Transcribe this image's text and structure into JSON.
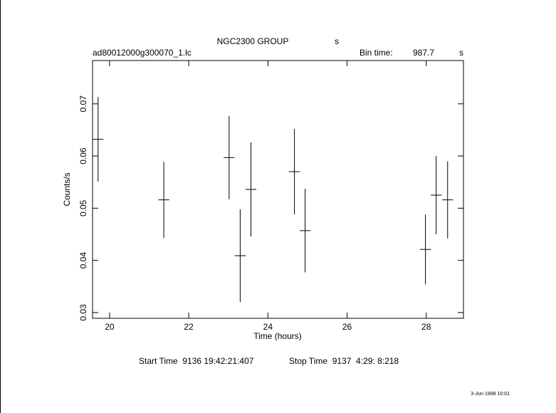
{
  "chart_data": {
    "type": "errorbar",
    "title": "NGC2300 GROUP",
    "title_unit": "s",
    "file_name": "ad80012000g300070_1.lc",
    "bin_time_label": "Bin time:",
    "bin_time": "987.7",
    "bin_time_unit": "s",
    "xlabel": "Time (hours)",
    "ylabel": "Counts/s",
    "x": [
      19.71,
      21.37,
      23.02,
      23.3,
      23.57,
      24.67,
      24.94,
      27.98,
      28.25,
      28.54
    ],
    "values": [
      0.0632,
      0.0516,
      0.0597,
      0.0409,
      0.0536,
      0.057,
      0.0457,
      0.0421,
      0.0525,
      0.0516
    ],
    "errors": [
      0.0081,
      0.0073,
      0.008,
      0.0089,
      0.009,
      0.0082,
      0.008,
      0.0067,
      0.0075,
      0.0074
    ],
    "xerr": 0.137,
    "color": "#000000",
    "xlim": [
      19.57,
      28.94
    ],
    "ylim": [
      0.0289,
      0.0783
    ],
    "xticks": [
      20,
      22,
      24,
      26,
      28
    ],
    "yticks": [
      0.03,
      0.04,
      0.05,
      0.06,
      0.07
    ],
    "start_time": "Start Time  9136 19:42:21:407",
    "stop_time": "Stop Time  9137  4:29: 8:218",
    "date": "3-Jun-1998 10:01"
  }
}
